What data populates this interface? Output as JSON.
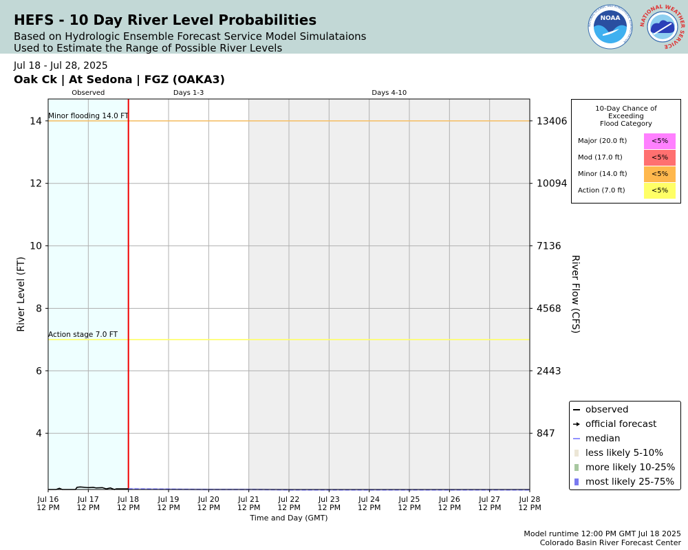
{
  "header": {
    "title": "HEFS - 10 Day River Level Probabilities",
    "subtitle_1": "Based on Hydrologic Ensemble Forecast Service Model Simulataions",
    "subtitle_2": "Used to Estimate the Range of Possible River Levels",
    "logo_noaa_text": "NOAA",
    "logo_noaa_ring": "NATIONAL OCEANIC AND ATMOSPHERIC ADMINISTRATION",
    "logo_nws_ring": "NATIONAL WEATHER SERVICE"
  },
  "date_range": "Jul 18 - Jul 28, 2025",
  "station": "Oak Ck | At Sedona | FGZ (OAKA3)",
  "flood_probability": {
    "title_lines": [
      "10-Day Chance of",
      "Exceeding",
      "Flood Category"
    ],
    "rows": [
      {
        "label": "Major (20.0 ft)",
        "value": "<5%",
        "color": "#ff80ff"
      },
      {
        "label": "Mod (17.0 ft)",
        "value": "<5%",
        "color": "#ff7070"
      },
      {
        "label": "Minor (14.0 ft)",
        "value": "<5%",
        "color": "#ffb84d"
      },
      {
        "label": "Action (7.0 ft)",
        "value": "<5%",
        "color": "#ffff66"
      }
    ]
  },
  "legend": {
    "items": [
      {
        "label": "observed",
        "kind": "line",
        "color": "#000000"
      },
      {
        "label": "official forecast",
        "kind": "arrow",
        "color": "#000000"
      },
      {
        "label": "median",
        "kind": "line",
        "color": "#6a6aff"
      },
      {
        "label": "less likely 5-10%",
        "kind": "patch",
        "color": "#ece6d6"
      },
      {
        "label": "more likely 10-25%",
        "kind": "patch",
        "color": "#a8c8a0"
      },
      {
        "label": "most likely 25-75%",
        "kind": "patch",
        "color": "#7a7af0"
      }
    ]
  },
  "footer": {
    "runtime": "Model runtime 12:00 PM GMT Jul 18 2025",
    "center": "Colorado Basin River Forecast Center"
  },
  "chart_data": {
    "type": "line",
    "xlabel": "Time and Day (GMT)",
    "ylabel": "River Level (FT)",
    "y2label": "River Flow (CFS)",
    "ylim": [
      2.2,
      14.7
    ],
    "x_ticks": [
      {
        "day": "Jul 16",
        "time": "12 PM"
      },
      {
        "day": "Jul 17",
        "time": "12 PM"
      },
      {
        "day": "Jul 18",
        "time": "12 PM"
      },
      {
        "day": "Jul 19",
        "time": "12 PM"
      },
      {
        "day": "Jul 20",
        "time": "12 PM"
      },
      {
        "day": "Jul 21",
        "time": "12 PM"
      },
      {
        "day": "Jul 22",
        "time": "12 PM"
      },
      {
        "day": "Jul 23",
        "time": "12 PM"
      },
      {
        "day": "Jul 24",
        "time": "12 PM"
      },
      {
        "day": "Jul 25",
        "time": "12 PM"
      },
      {
        "day": "Jul 26",
        "time": "12 PM"
      },
      {
        "day": "Jul 27",
        "time": "12 PM"
      },
      {
        "day": "Jul 28",
        "time": "12 PM"
      }
    ],
    "y_ticks": [
      4,
      6,
      8,
      10,
      12,
      14
    ],
    "y2_ticks": [
      {
        "stage": 4,
        "label": "847"
      },
      {
        "stage": 6,
        "label": "2443"
      },
      {
        "stage": 8,
        "label": "4568"
      },
      {
        "stage": 10,
        "label": "7136"
      },
      {
        "stage": 12,
        "label": "10094"
      },
      {
        "stage": 14,
        "label": "13406"
      }
    ],
    "periods": [
      {
        "label": "Observed",
        "start": 0,
        "end": 2,
        "color": "#eeffff"
      },
      {
        "label": "Days 1-3",
        "start": 2,
        "end": 5,
        "color": "#ffffff"
      },
      {
        "label": "Days 4-10",
        "start": 5,
        "end": 12,
        "color": "#efefef"
      }
    ],
    "forecast_start": 2,
    "thresholds": [
      {
        "label": "Minor flooding 14.0 FT",
        "value": 14.0,
        "color": "#f5c06a"
      },
      {
        "label": "Action stage 7.0 FT",
        "value": 7.0,
        "color": "#ffff66"
      }
    ],
    "observed": {
      "name": "observed",
      "color": "#000000",
      "x": [
        0,
        0.2,
        0.28,
        0.35,
        0.5,
        0.68,
        0.72,
        0.8,
        1.0,
        1.12,
        1.2,
        1.35,
        1.45,
        1.55,
        1.65,
        1.7,
        1.8,
        2.0
      ],
      "y": [
        2.2,
        2.2,
        2.24,
        2.2,
        2.2,
        2.2,
        2.27,
        2.28,
        2.26,
        2.27,
        2.25,
        2.26,
        2.22,
        2.25,
        2.2,
        2.22,
        2.22,
        2.22
      ]
    },
    "median": {
      "name": "median",
      "color": "#6a6aff",
      "x": [
        2,
        3,
        4,
        5,
        6,
        7,
        8,
        9,
        10,
        11,
        12
      ],
      "y": [
        2.22,
        2.21,
        2.2,
        2.2,
        2.19,
        2.19,
        2.19,
        2.19,
        2.19,
        2.19,
        2.19
      ]
    }
  }
}
